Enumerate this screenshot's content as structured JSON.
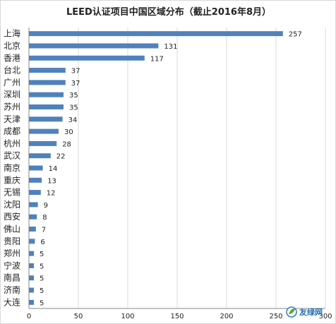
{
  "chart_data": {
    "type": "bar",
    "orientation": "horizontal",
    "title": "LEED认证项目中国区域分布（截止2016年8月）",
    "categories": [
      "上海",
      "北京",
      "香港",
      "台北",
      "广州",
      "深圳",
      "苏州",
      "天津",
      "成都",
      "杭州",
      "武汉",
      "南京",
      "重庆",
      "无锡",
      "沈阳",
      "西安",
      "佛山",
      "贵阳",
      "郑州",
      "宁波",
      "南昌",
      "济南",
      "大连"
    ],
    "values": [
      257,
      131,
      117,
      37,
      37,
      35,
      35,
      34,
      30,
      28,
      22,
      14,
      13,
      12,
      9,
      8,
      7,
      6,
      5,
      5,
      5,
      5,
      5
    ],
    "xlim": [
      0,
      300
    ],
    "xticks": [
      0,
      50,
      100,
      150,
      200,
      250,
      300
    ],
    "xlabel": "",
    "ylabel": "",
    "grid": "vertical",
    "bar_color": "#4f81bd"
  },
  "watermark": {
    "text": "友绿网",
    "icon": "leaf-logo-icon"
  }
}
